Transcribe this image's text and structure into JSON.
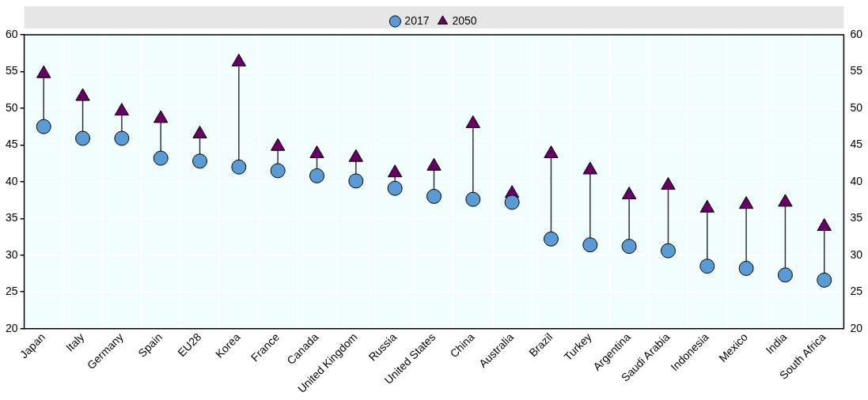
{
  "chart_data": {
    "type": "scatter",
    "categories": [
      "Japan",
      "Italy",
      "Germany",
      "Spain",
      "EU28",
      "Korea",
      "France",
      "Canada",
      "United Kingdom",
      "Russia",
      "United States",
      "China",
      "Australia",
      "Brazil",
      "Turkey",
      "Argentina",
      "Saudi Arabia",
      "Indonesia",
      "Mexico",
      "India",
      "South Africa"
    ],
    "series": [
      {
        "name": "2017",
        "color": "#5b9bd5",
        "marker": "circle",
        "values": [
          47.5,
          45.9,
          45.9,
          43.2,
          42.8,
          42.0,
          41.5,
          40.8,
          40.1,
          39.1,
          38.0,
          37.6,
          37.2,
          32.2,
          31.4,
          31.2,
          30.6,
          28.5,
          28.2,
          27.3,
          26.6
        ]
      },
      {
        "name": "2050",
        "color": "#660066",
        "marker": "triangle",
        "values": [
          54.7,
          51.6,
          49.6,
          48.6,
          46.5,
          56.3,
          44.8,
          43.8,
          43.3,
          41.2,
          42.1,
          47.9,
          38.4,
          43.8,
          41.6,
          38.2,
          39.5,
          36.4,
          36.9,
          37.2,
          33.9
        ]
      }
    ],
    "ylim": [
      20,
      60
    ],
    "yticks": [
      20,
      25,
      30,
      35,
      40,
      45,
      50,
      55,
      60
    ],
    "y2lim": [
      20,
      60
    ],
    "y2ticks": [
      20,
      25,
      30,
      35,
      40,
      45,
      50,
      55,
      60
    ],
    "grid": true,
    "legend": "top"
  }
}
